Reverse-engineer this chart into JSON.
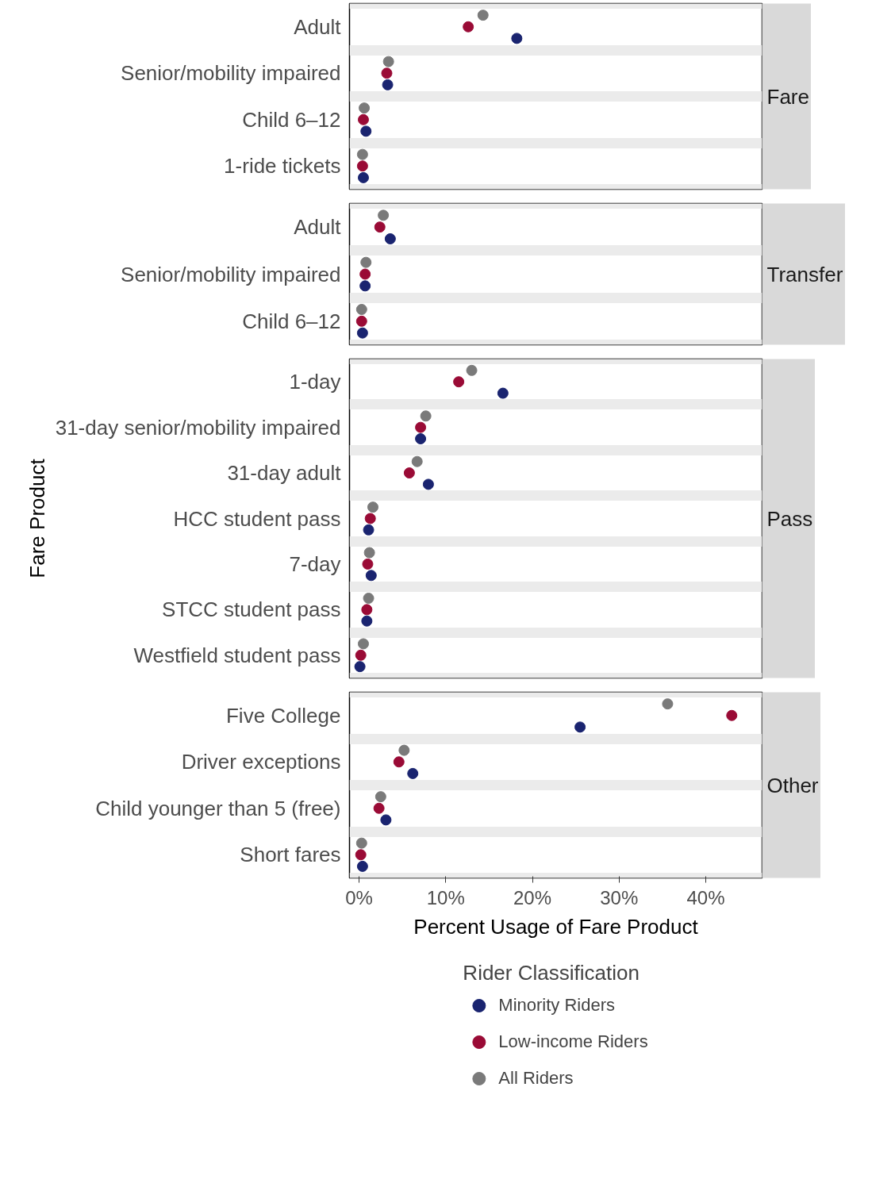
{
  "chart_data": [
    {
      "type": "scatter",
      "orientation": "horizontal",
      "title": "Fare",
      "categories": [
        "Adult",
        "Senior/mobility impaired",
        "Child 6–12",
        "1-ride tickets"
      ],
      "xlim": [
        -1.1,
        46.5
      ],
      "tick_labels": "y",
      "grid": "y",
      "marker": "circle",
      "series": [
        {
          "color": "#1a2470",
          "values": [
            18.2,
            3.3,
            0.8,
            0.5
          ]
        },
        {
          "color": "#9a0b36",
          "values": [
            12.6,
            3.2,
            0.5,
            0.4
          ]
        },
        {
          "color": "#7a7a7a",
          "values": [
            14.3,
            3.4,
            0.6,
            0.4
          ]
        }
      ]
    },
    {
      "type": "scatter",
      "orientation": "horizontal",
      "title": "Transfer",
      "categories": [
        "Adult",
        "Senior/mobility impaired",
        "Child 6–12"
      ],
      "xlim": [
        -1.1,
        46.5
      ],
      "tick_labels": "y",
      "grid": "y",
      "marker": "circle",
      "series": [
        {
          "color": "#1a2470",
          "values": [
            3.6,
            0.7,
            0.4
          ]
        },
        {
          "color": "#9a0b36",
          "values": [
            2.4,
            0.7,
            0.3
          ]
        },
        {
          "color": "#7a7a7a",
          "values": [
            2.8,
            0.8,
            0.3
          ]
        }
      ]
    },
    {
      "type": "scatter",
      "orientation": "horizontal",
      "title": "Pass",
      "ylabel": "Fare Product",
      "categories": [
        "1-day",
        "31-day senior/mobility impaired",
        "31-day adult",
        "HCC student pass",
        "7-day",
        "STCC student pass",
        "Westfield student pass"
      ],
      "xlim": [
        -1.1,
        46.5
      ],
      "tick_labels": "y",
      "grid": "y",
      "marker": "circle",
      "series": [
        {
          "color": "#1a2470",
          "values": [
            16.6,
            7.1,
            8.0,
            1.1,
            1.4,
            0.9,
            0.1
          ]
        },
        {
          "color": "#9a0b36",
          "values": [
            11.5,
            7.1,
            5.8,
            1.3,
            1.0,
            0.9,
            0.2
          ]
        },
        {
          "color": "#7a7a7a",
          "values": [
            13.0,
            7.7,
            6.7,
            1.6,
            1.2,
            1.1,
            0.5
          ]
        }
      ]
    },
    {
      "type": "scatter",
      "orientation": "horizontal",
      "title": "Other",
      "xlabel": "Percent Usage of Fare Product",
      "legend_title": "Rider Classification",
      "legend": "bottom",
      "categories": [
        "Five College",
        "Driver exceptions",
        "Child younger than 5 (free)",
        "Short fares"
      ],
      "xlim": [
        -1.1,
        46.5
      ],
      "xticks": [
        {
          "value": 0,
          "label": "0%"
        },
        {
          "value": 10,
          "label": "10%"
        },
        {
          "value": 20,
          "label": "20%"
        },
        {
          "value": 30,
          "label": "30%"
        },
        {
          "value": 40,
          "label": "40%"
        }
      ],
      "grid": "y",
      "marker": "circle",
      "series": [
        {
          "name": "Minority Riders",
          "color": "#1a2470",
          "values": [
            25.5,
            6.2,
            3.1,
            0.4
          ]
        },
        {
          "name": "Low-income Riders",
          "color": "#9a0b36",
          "values": [
            43.0,
            4.6,
            2.3,
            0.2
          ]
        },
        {
          "name": "All Riders",
          "color": "#7a7a7a",
          "values": [
            35.6,
            5.2,
            2.5,
            0.3
          ]
        }
      ]
    }
  ]
}
